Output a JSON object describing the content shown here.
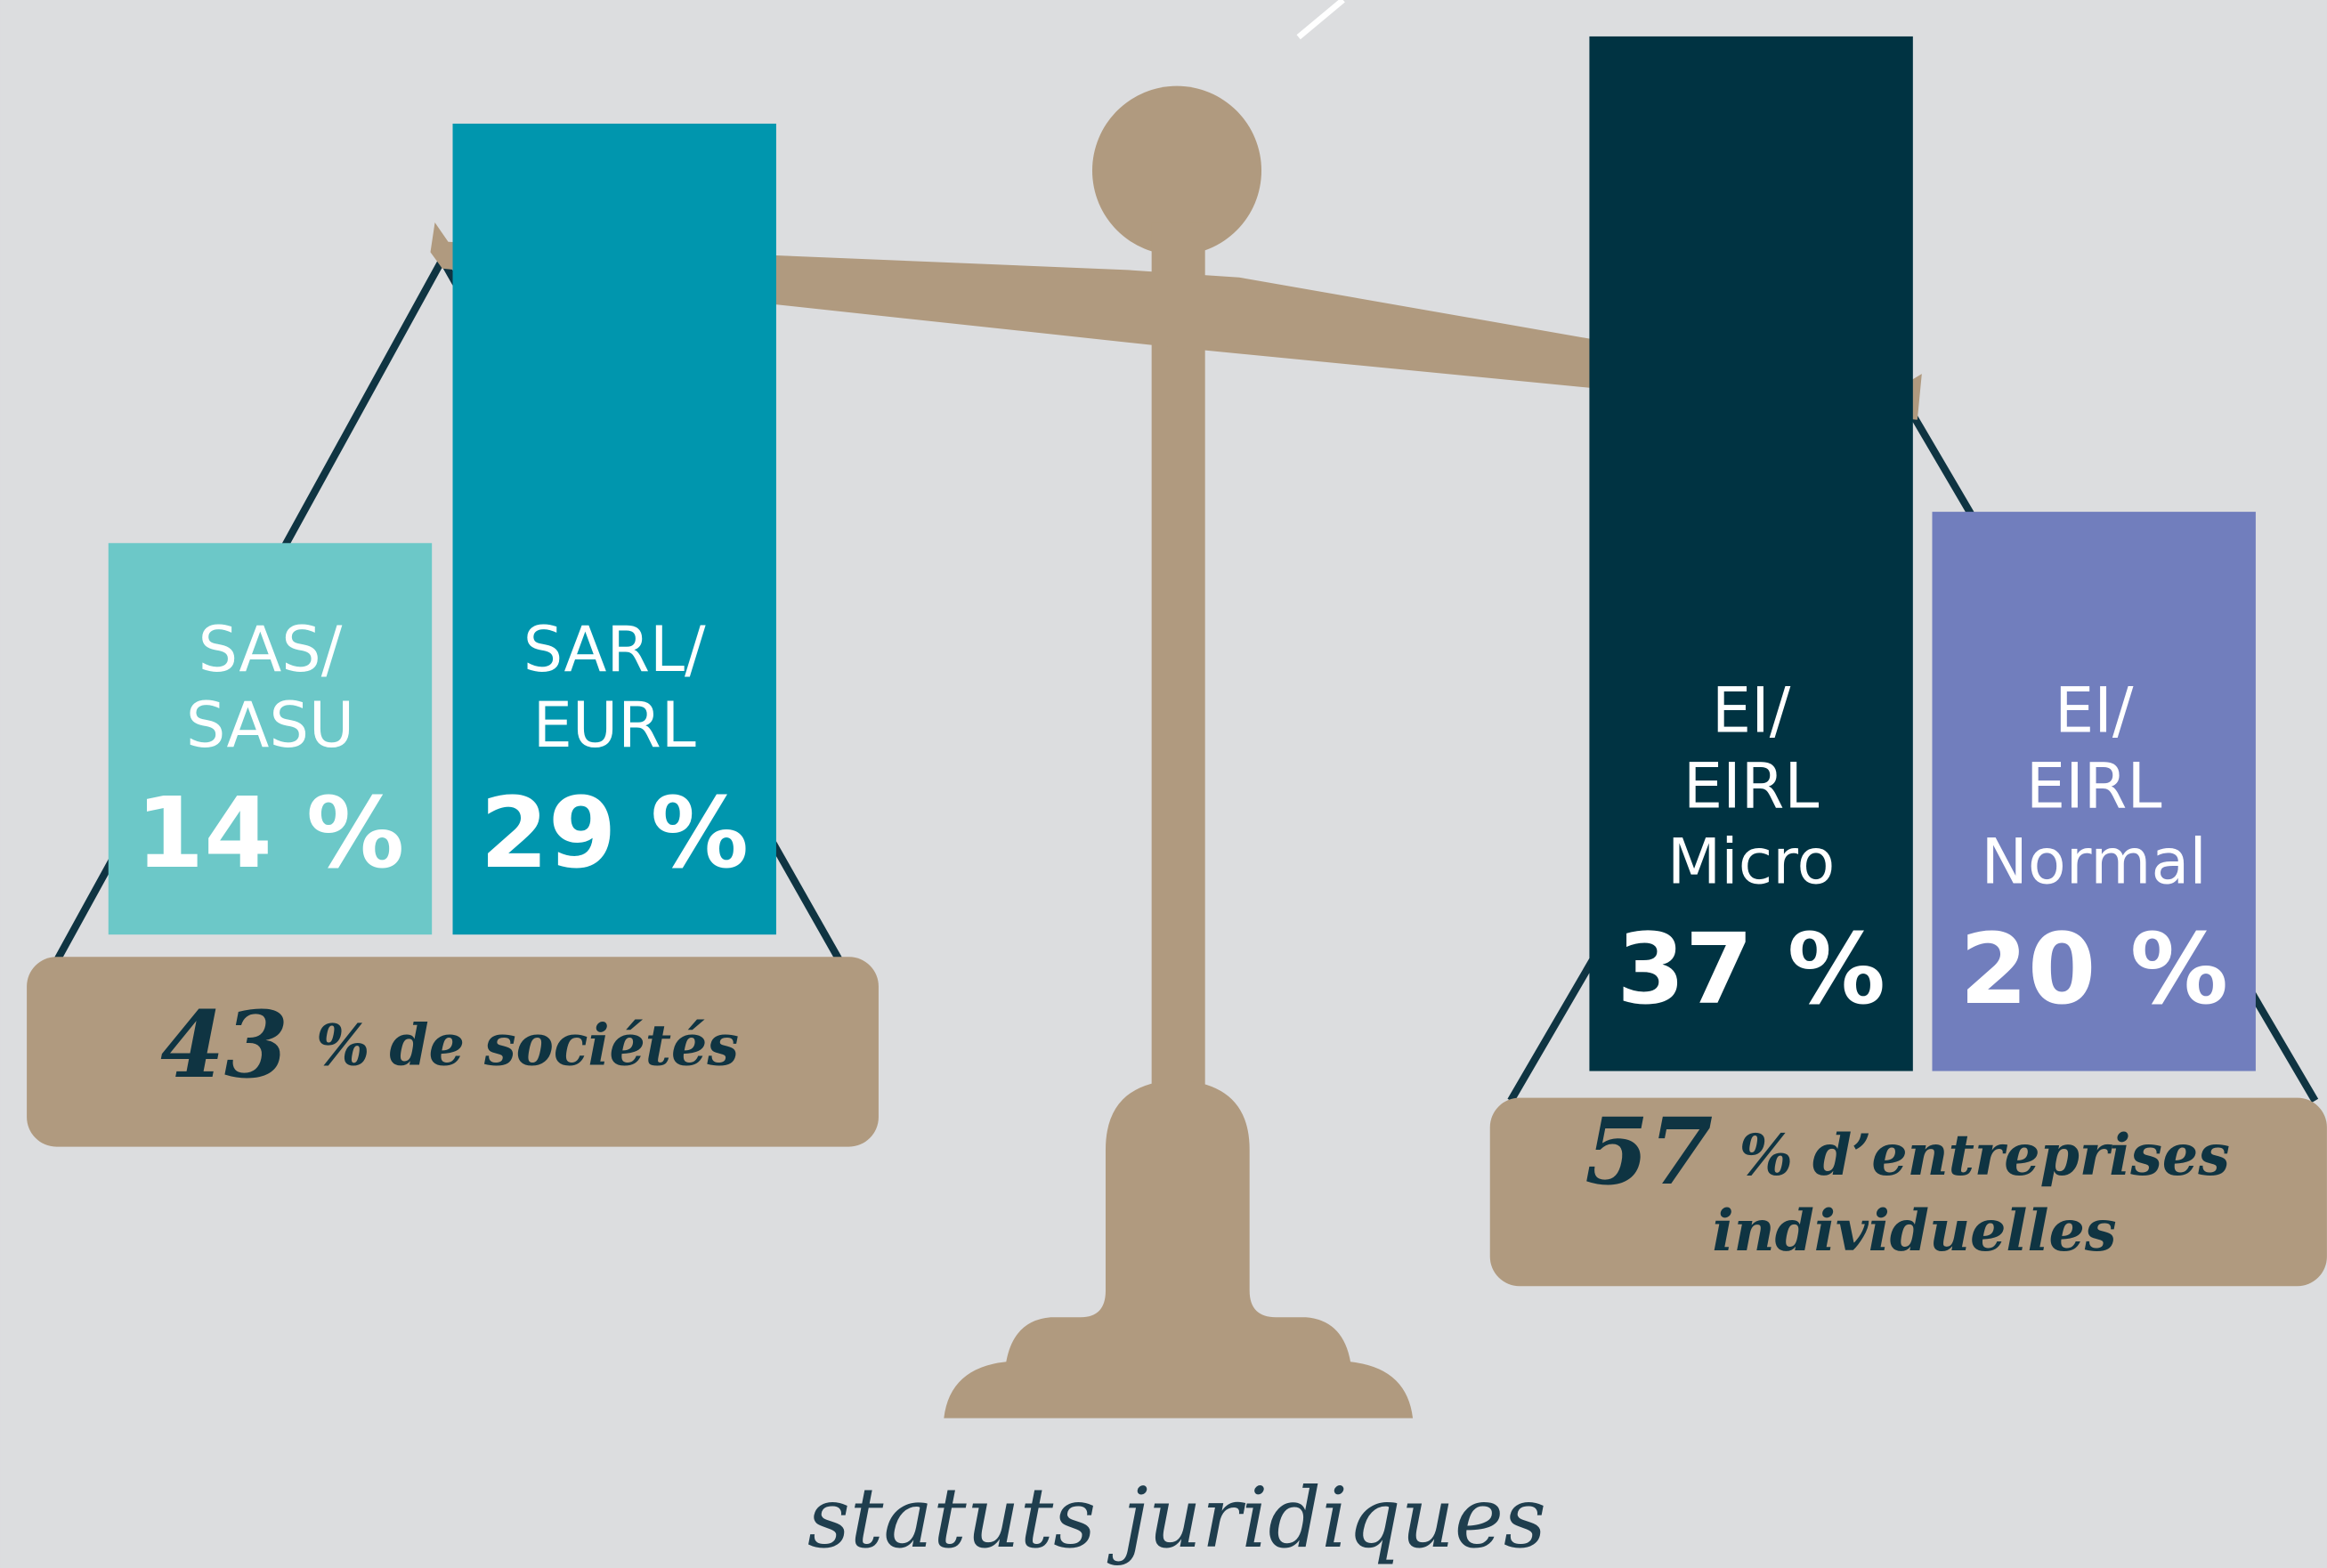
{
  "chart_data": {
    "type": "balance",
    "title": "statuts juridiques",
    "groups": [
      {
        "total": 43,
        "total_text": [
          "% de sociétés"
        ],
        "items": [
          {
            "label": [
              "SAS/",
              "SASU"
            ],
            "value": 14,
            "value_label": "14  %",
            "color": "#6cc8c8"
          },
          {
            "label": [
              "SARL/",
              "EURL"
            ],
            "value": 29,
            "value_label": "29 %",
            "color": "#0096ae"
          }
        ]
      },
      {
        "total": 57,
        "total_text": [
          "% d’entreprises",
          "individuelles"
        ],
        "items": [
          {
            "label": [
              "EI/",
              "EIRL",
              "Micro"
            ],
            "value": 37,
            "value_label": "37 %",
            "color": "#003342"
          },
          {
            "label": [
              "EI/",
              "EIRL",
              "Normal"
            ],
            "value": 20,
            "value_label": "20 %",
            "color": "#717ebd"
          }
        ]
      }
    ]
  }
}
